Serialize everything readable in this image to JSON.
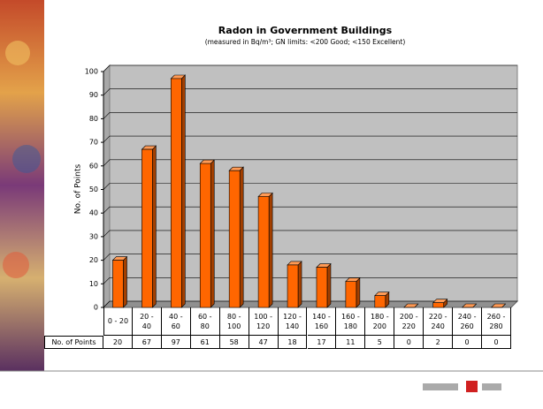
{
  "chart_data": {
    "type": "bar",
    "title": "Radon in Government Buildings",
    "subtitle": "(measured in Bq/m³; GN limits: <200 Good; <150 Excellent)",
    "y_label": "No. of Points",
    "table_row_label": "No. of Points",
    "categories": [
      "0 - 20",
      "20 - 40",
      "40 - 60",
      "60 - 80",
      "80 - 100",
      "100 - 120",
      "120 - 140",
      "140 - 160",
      "160 - 180",
      "180 - 200",
      "200 - 220",
      "220 - 240",
      "240 - 260",
      "260 - 280"
    ],
    "values": [
      20,
      67,
      97,
      61,
      58,
      47,
      18,
      17,
      11,
      5,
      0,
      2,
      0,
      0
    ],
    "color": "#ff6600",
    "ylim": [
      0,
      100
    ],
    "yticks": [
      0,
      10,
      20,
      30,
      40,
      50,
      60,
      70,
      80,
      90,
      100
    ],
    "grid": true
  }
}
